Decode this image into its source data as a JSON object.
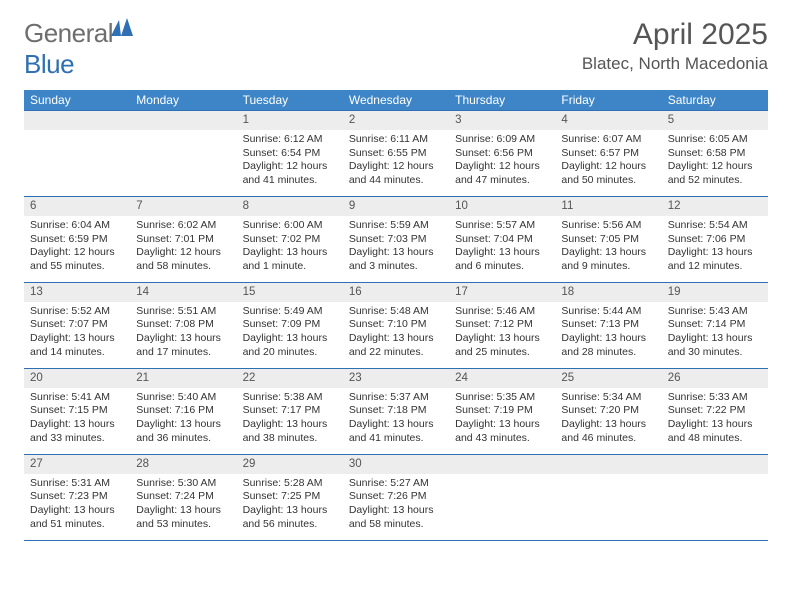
{
  "brand": {
    "name_gray": "General",
    "name_blue": "Blue"
  },
  "header": {
    "title": "April 2025",
    "location": "Blatec, North Macedonia"
  },
  "style": {
    "header_bg": "#3d85c6",
    "header_fg": "#ffffff",
    "border_color": "#2f6fb3",
    "daynum_bg": "#ededed",
    "text_color": "#333333",
    "logo_gray": "#6e6e6e",
    "title_color": "#555555"
  },
  "calendar": {
    "weekdays": [
      "Sunday",
      "Monday",
      "Tuesday",
      "Wednesday",
      "Thursday",
      "Friday",
      "Saturday"
    ],
    "weeks": [
      [
        null,
        null,
        {
          "day": "1",
          "sunrise": "Sunrise: 6:12 AM",
          "sunset": "Sunset: 6:54 PM",
          "daylight": "Daylight: 12 hours and 41 minutes."
        },
        {
          "day": "2",
          "sunrise": "Sunrise: 6:11 AM",
          "sunset": "Sunset: 6:55 PM",
          "daylight": "Daylight: 12 hours and 44 minutes."
        },
        {
          "day": "3",
          "sunrise": "Sunrise: 6:09 AM",
          "sunset": "Sunset: 6:56 PM",
          "daylight": "Daylight: 12 hours and 47 minutes."
        },
        {
          "day": "4",
          "sunrise": "Sunrise: 6:07 AM",
          "sunset": "Sunset: 6:57 PM",
          "daylight": "Daylight: 12 hours and 50 minutes."
        },
        {
          "day": "5",
          "sunrise": "Sunrise: 6:05 AM",
          "sunset": "Sunset: 6:58 PM",
          "daylight": "Daylight: 12 hours and 52 minutes."
        }
      ],
      [
        {
          "day": "6",
          "sunrise": "Sunrise: 6:04 AM",
          "sunset": "Sunset: 6:59 PM",
          "daylight": "Daylight: 12 hours and 55 minutes."
        },
        {
          "day": "7",
          "sunrise": "Sunrise: 6:02 AM",
          "sunset": "Sunset: 7:01 PM",
          "daylight": "Daylight: 12 hours and 58 minutes."
        },
        {
          "day": "8",
          "sunrise": "Sunrise: 6:00 AM",
          "sunset": "Sunset: 7:02 PM",
          "daylight": "Daylight: 13 hours and 1 minute."
        },
        {
          "day": "9",
          "sunrise": "Sunrise: 5:59 AM",
          "sunset": "Sunset: 7:03 PM",
          "daylight": "Daylight: 13 hours and 3 minutes."
        },
        {
          "day": "10",
          "sunrise": "Sunrise: 5:57 AM",
          "sunset": "Sunset: 7:04 PM",
          "daylight": "Daylight: 13 hours and 6 minutes."
        },
        {
          "day": "11",
          "sunrise": "Sunrise: 5:56 AM",
          "sunset": "Sunset: 7:05 PM",
          "daylight": "Daylight: 13 hours and 9 minutes."
        },
        {
          "day": "12",
          "sunrise": "Sunrise: 5:54 AM",
          "sunset": "Sunset: 7:06 PM",
          "daylight": "Daylight: 13 hours and 12 minutes."
        }
      ],
      [
        {
          "day": "13",
          "sunrise": "Sunrise: 5:52 AM",
          "sunset": "Sunset: 7:07 PM",
          "daylight": "Daylight: 13 hours and 14 minutes."
        },
        {
          "day": "14",
          "sunrise": "Sunrise: 5:51 AM",
          "sunset": "Sunset: 7:08 PM",
          "daylight": "Daylight: 13 hours and 17 minutes."
        },
        {
          "day": "15",
          "sunrise": "Sunrise: 5:49 AM",
          "sunset": "Sunset: 7:09 PM",
          "daylight": "Daylight: 13 hours and 20 minutes."
        },
        {
          "day": "16",
          "sunrise": "Sunrise: 5:48 AM",
          "sunset": "Sunset: 7:10 PM",
          "daylight": "Daylight: 13 hours and 22 minutes."
        },
        {
          "day": "17",
          "sunrise": "Sunrise: 5:46 AM",
          "sunset": "Sunset: 7:12 PM",
          "daylight": "Daylight: 13 hours and 25 minutes."
        },
        {
          "day": "18",
          "sunrise": "Sunrise: 5:44 AM",
          "sunset": "Sunset: 7:13 PM",
          "daylight": "Daylight: 13 hours and 28 minutes."
        },
        {
          "day": "19",
          "sunrise": "Sunrise: 5:43 AM",
          "sunset": "Sunset: 7:14 PM",
          "daylight": "Daylight: 13 hours and 30 minutes."
        }
      ],
      [
        {
          "day": "20",
          "sunrise": "Sunrise: 5:41 AM",
          "sunset": "Sunset: 7:15 PM",
          "daylight": "Daylight: 13 hours and 33 minutes."
        },
        {
          "day": "21",
          "sunrise": "Sunrise: 5:40 AM",
          "sunset": "Sunset: 7:16 PM",
          "daylight": "Daylight: 13 hours and 36 minutes."
        },
        {
          "day": "22",
          "sunrise": "Sunrise: 5:38 AM",
          "sunset": "Sunset: 7:17 PM",
          "daylight": "Daylight: 13 hours and 38 minutes."
        },
        {
          "day": "23",
          "sunrise": "Sunrise: 5:37 AM",
          "sunset": "Sunset: 7:18 PM",
          "daylight": "Daylight: 13 hours and 41 minutes."
        },
        {
          "day": "24",
          "sunrise": "Sunrise: 5:35 AM",
          "sunset": "Sunset: 7:19 PM",
          "daylight": "Daylight: 13 hours and 43 minutes."
        },
        {
          "day": "25",
          "sunrise": "Sunrise: 5:34 AM",
          "sunset": "Sunset: 7:20 PM",
          "daylight": "Daylight: 13 hours and 46 minutes."
        },
        {
          "day": "26",
          "sunrise": "Sunrise: 5:33 AM",
          "sunset": "Sunset: 7:22 PM",
          "daylight": "Daylight: 13 hours and 48 minutes."
        }
      ],
      [
        {
          "day": "27",
          "sunrise": "Sunrise: 5:31 AM",
          "sunset": "Sunset: 7:23 PM",
          "daylight": "Daylight: 13 hours and 51 minutes."
        },
        {
          "day": "28",
          "sunrise": "Sunrise: 5:30 AM",
          "sunset": "Sunset: 7:24 PM",
          "daylight": "Daylight: 13 hours and 53 minutes."
        },
        {
          "day": "29",
          "sunrise": "Sunrise: 5:28 AM",
          "sunset": "Sunset: 7:25 PM",
          "daylight": "Daylight: 13 hours and 56 minutes."
        },
        {
          "day": "30",
          "sunrise": "Sunrise: 5:27 AM",
          "sunset": "Sunset: 7:26 PM",
          "daylight": "Daylight: 13 hours and 58 minutes."
        },
        null,
        null,
        null
      ]
    ]
  }
}
